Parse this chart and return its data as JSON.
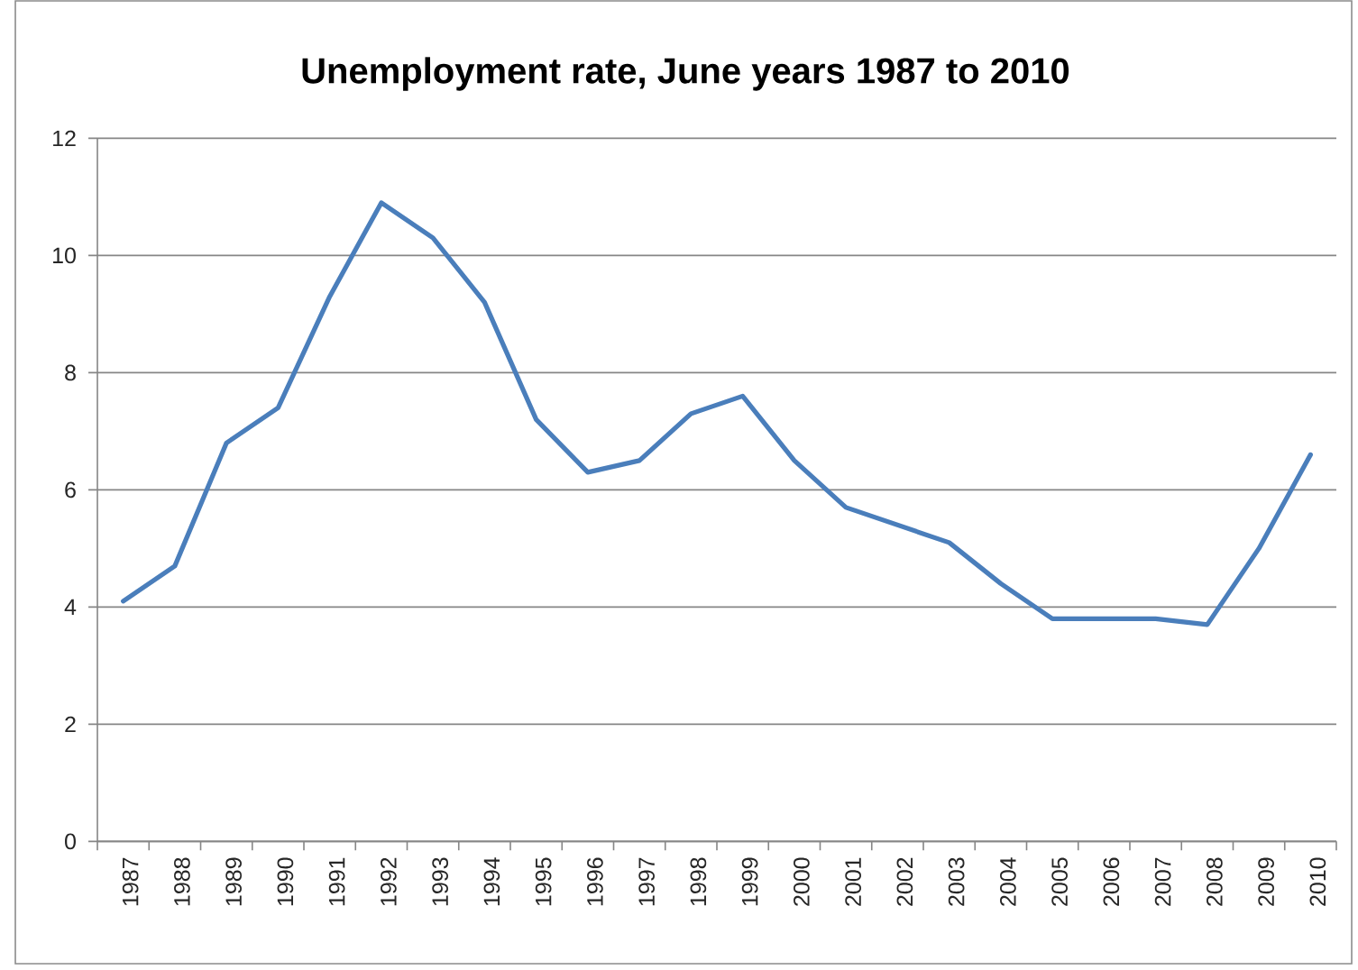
{
  "chart_data": {
    "type": "line",
    "title": "Unemployment rate, June years 1987 to 2010",
    "categories": [
      "1987",
      "1988",
      "1989",
      "1990",
      "1991",
      "1992",
      "1993",
      "1994",
      "1995",
      "1996",
      "1997",
      "1998",
      "1999",
      "2000",
      "2001",
      "2002",
      "2003",
      "2004",
      "2005",
      "2006",
      "2007",
      "2008",
      "2009",
      "2010"
    ],
    "values": [
      4.1,
      4.7,
      6.8,
      7.4,
      9.3,
      10.9,
      10.3,
      9.2,
      7.2,
      6.3,
      6.5,
      7.3,
      7.6,
      6.5,
      5.7,
      5.4,
      5.1,
      4.4,
      3.8,
      3.8,
      3.8,
      3.7,
      5.0,
      6.6
    ],
    "color": "#4a7ebb",
    "ylim": [
      0,
      12
    ],
    "yticks": [
      0,
      2,
      4,
      6,
      8,
      10,
      12
    ],
    "grid": "y",
    "legend": false,
    "marker": "none",
    "line_style": "solid"
  }
}
